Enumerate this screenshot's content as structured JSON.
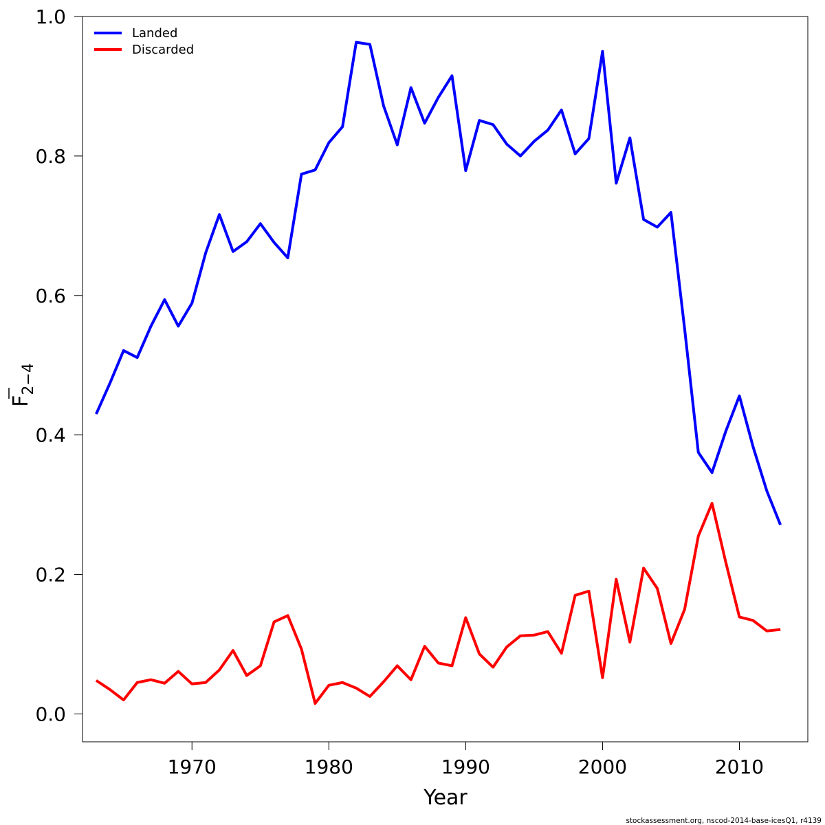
{
  "chart_data": {
    "type": "line",
    "xlabel": "Year",
    "ylabel_main": "F",
    "ylabel_sub": "2−4",
    "xlim": [
      1962,
      2015
    ],
    "ylim": [
      -0.04,
      1.0
    ],
    "x_ticks": [
      1970,
      1980,
      1990,
      2000,
      2010
    ],
    "y_ticks": [
      0.0,
      0.2,
      0.4,
      0.6,
      0.8,
      1.0
    ],
    "y_tick_labels": [
      "0.0",
      "0.2",
      "0.4",
      "0.6",
      "0.8",
      "1.0"
    ],
    "legend_position": "top-left",
    "grid": false,
    "x": [
      1963,
      1964,
      1965,
      1966,
      1967,
      1968,
      1969,
      1970,
      1971,
      1972,
      1973,
      1974,
      1975,
      1976,
      1977,
      1978,
      1979,
      1980,
      1981,
      1982,
      1983,
      1984,
      1985,
      1986,
      1987,
      1988,
      1989,
      1990,
      1991,
      1992,
      1993,
      1994,
      1995,
      1996,
      1997,
      1998,
      1999,
      2000,
      2001,
      2002,
      2003,
      2004,
      2005,
      2006,
      2007,
      2008,
      2009,
      2010,
      2011,
      2012,
      2013
    ],
    "series": [
      {
        "name": "Landed",
        "color": "#0000ff",
        "values": [
          0.43,
          0.474,
          0.521,
          0.511,
          0.556,
          0.594,
          0.556,
          0.589,
          0.661,
          0.716,
          0.663,
          0.677,
          0.703,
          0.676,
          0.654,
          0.774,
          0.78,
          0.819,
          0.842,
          0.963,
          0.96,
          0.872,
          0.816,
          0.898,
          0.847,
          0.884,
          0.915,
          0.779,
          0.851,
          0.845,
          0.817,
          0.8,
          0.821,
          0.837,
          0.866,
          0.803,
          0.825,
          0.95,
          0.761,
          0.826,
          0.709,
          0.698,
          0.719,
          0.552,
          0.375,
          0.346,
          0.405,
          0.456,
          0.383,
          0.32,
          0.271
        ]
      },
      {
        "name": "Discarded",
        "color": "#ff0000",
        "values": [
          0.048,
          0.035,
          0.02,
          0.045,
          0.049,
          0.044,
          0.061,
          0.043,
          0.045,
          0.063,
          0.091,
          0.055,
          0.069,
          0.132,
          0.141,
          0.093,
          0.015,
          0.041,
          0.045,
          0.037,
          0.025,
          0.046,
          0.069,
          0.049,
          0.097,
          0.073,
          0.069,
          0.138,
          0.086,
          0.067,
          0.096,
          0.112,
          0.113,
          0.118,
          0.087,
          0.17,
          0.176,
          0.052,
          0.193,
          0.103,
          0.209,
          0.18,
          0.101,
          0.15,
          0.255,
          0.302,
          0.218,
          0.139,
          0.134,
          0.119,
          0.121
        ]
      }
    ]
  },
  "footnote": "stockassessment.org, nscod-2014-base-icesQ1, r4139"
}
